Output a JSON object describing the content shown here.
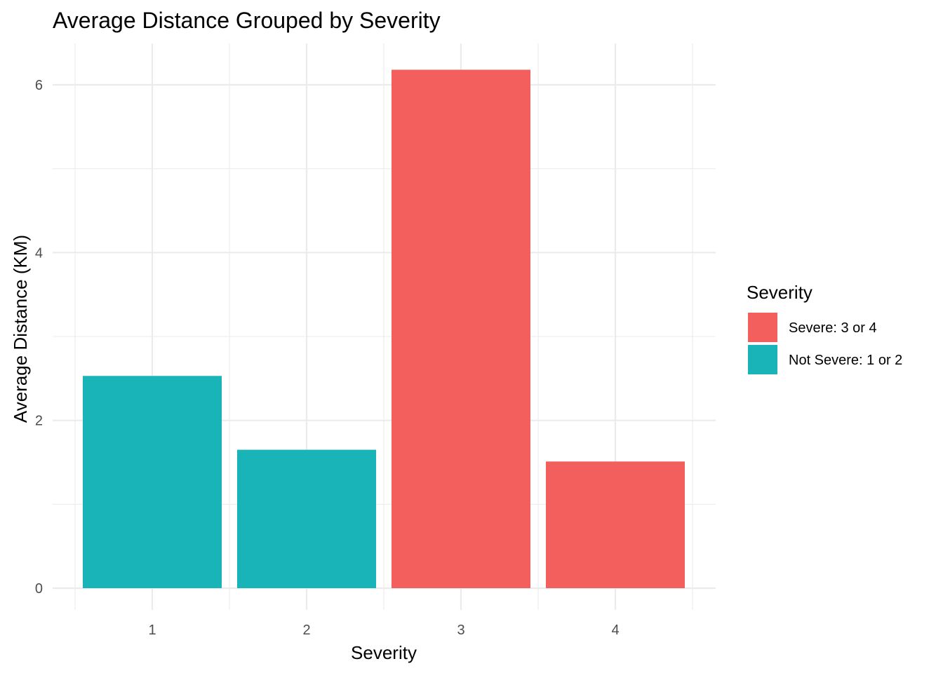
{
  "chart_data": {
    "type": "bar",
    "title": "Average Distance Grouped by Severity",
    "xlabel": "Severity",
    "ylabel": "Average Distance (KM)",
    "categories": [
      "1",
      "2",
      "3",
      "4"
    ],
    "values": [
      2.53,
      1.65,
      6.18,
      1.51
    ],
    "groups": [
      "Not Severe: 1 or 2",
      "Not Severe: 1 or 2",
      "Severe: 3 or 4",
      "Severe: 3 or 4"
    ],
    "ylim": [
      0,
      6.4
    ],
    "yticks": [
      0,
      2,
      4,
      6
    ],
    "grid": true,
    "legend": {
      "title": "Severity",
      "position": "right",
      "entries": [
        {
          "label": "Severe: 3 or 4",
          "color": "#F35F5C"
        },
        {
          "label": "Not Severe: 1 or 2",
          "color": "#19B4B8"
        }
      ]
    }
  }
}
